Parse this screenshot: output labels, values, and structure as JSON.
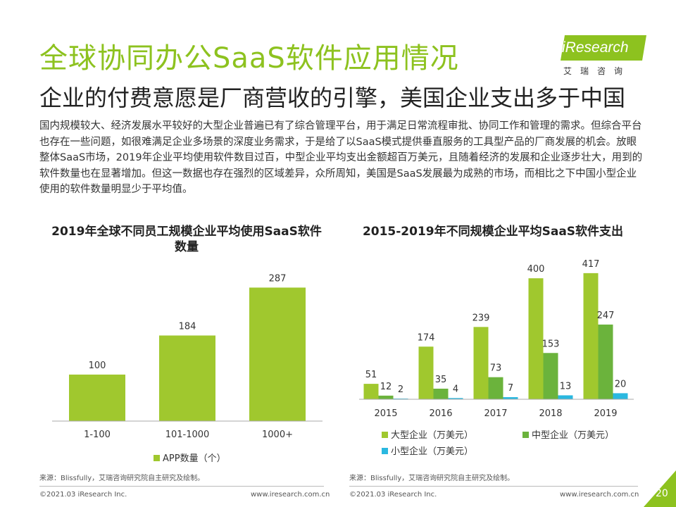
{
  "header": {
    "title": "全球协同办公SaaS软件应用情况",
    "subtitle": "企业的付费意愿是厂商营收的引擎，美国企业支出多于中国"
  },
  "logo": {
    "brand": "iResearch",
    "sub": "艾瑞咨询",
    "color": "#8dc21f"
  },
  "body_text": "国内规模较大、经济发展水平较好的大型企业普遍已有了综合管理平台，用于满足日常流程审批、协同工作和管理的需求。但综合平台也存在一些问题，如很难满足企业多场景的深度业务需求，于是给了以SaaS模式提供垂直服务的工具型产品的厂商发展的机会。放眼整体SaaS市场，2019年企业平均使用软件数目过百，中型企业平均支出金额超百万美元，且随着经济的发展和企业逐步壮大，用到的软件数量也在显著增加。但这一数据也存在强烈的区域差异，众所周知，美国是SaaS发展最为成熟的市场，而相比之下中国小型企业使用的软件数量明显少于平均值。",
  "chart_data": [
    {
      "type": "bar",
      "title": "2019年全球不同员工规模企业平均使用SaaS软件数量",
      "categories": [
        "1-100",
        "101-1000",
        "1000+"
      ],
      "series": [
        {
          "name": "APP数量（个）",
          "values": [
            100,
            184,
            287
          ],
          "color": "#a0c82e"
        }
      ],
      "ylim": [
        0,
        330
      ],
      "legend": "bottom",
      "grid": false
    },
    {
      "type": "bar",
      "title": "2015-2019年不同规模企业平均SaaS软件支出",
      "categories": [
        "2015",
        "2016",
        "2017",
        "2018",
        "2019"
      ],
      "series": [
        {
          "name": "大型企业（万美元）",
          "values": [
            51,
            174,
            239,
            400,
            417
          ],
          "color": "#a0c82e"
        },
        {
          "name": "中型企业（万美元）",
          "values": [
            12,
            35,
            73,
            153,
            247
          ],
          "color": "#6bb33c"
        },
        {
          "name": "小型企业（万美元）",
          "values": [
            2,
            4,
            7,
            13,
            20
          ],
          "color": "#2ab8e0"
        }
      ],
      "ylim": [
        0,
        440
      ],
      "legend": "bottom",
      "grid": false
    }
  ],
  "sources": {
    "left": "来源：Blissfully，艾瑞咨询研究院自主研究及绘制。",
    "right": "来源：Blissfully，艾瑞咨询研究院自主研究及绘制。"
  },
  "footer": {
    "left_copyright": "©2021.03 iResearch Inc.",
    "left_url": "www.iresearch.com.cn",
    "right_copyright": "©2021.03 iResearch Inc.",
    "right_url": "www.iresearch.com.cn",
    "page_number": "20"
  }
}
